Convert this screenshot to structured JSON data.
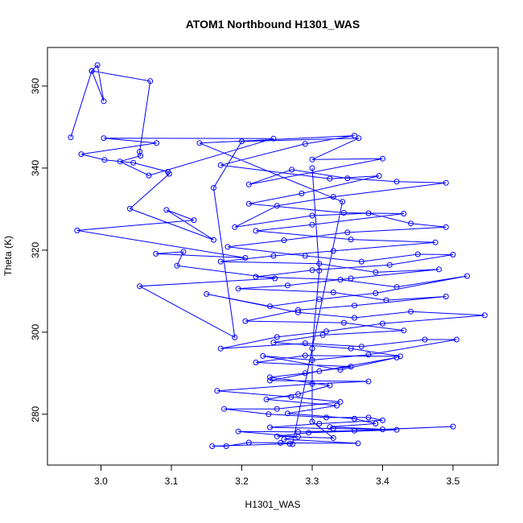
{
  "chart_data": {
    "type": "scatter",
    "title": "ATOM1 Northbound H1301_WAS",
    "xlabel": "H1301_WAS",
    "ylabel": "Theta (K)",
    "xlim": [
      2.924,
      3.564
    ],
    "ylim": [
      267.6,
      369.4
    ],
    "xticks": [
      3.0,
      3.1,
      3.2,
      3.3,
      3.4,
      3.5
    ],
    "xtick_labels": [
      "3.0",
      "3.1",
      "3.2",
      "3.3",
      "3.4",
      "3.5"
    ],
    "yticks": [
      280,
      300,
      320,
      340,
      360
    ],
    "ytick_labels": [
      "280",
      "300",
      "320",
      "340",
      "360"
    ],
    "grid": false,
    "legend": "none",
    "color": "#0000ff",
    "connected": true,
    "series": [
      {
        "points": [
          [
            2.957,
            347.5
          ],
          [
            2.987,
            363.7
          ],
          [
            2.995,
            365.1
          ],
          [
            3.004,
            356.3
          ],
          [
            2.987,
            363.7
          ],
          [
            3.07,
            361.2
          ],
          [
            3.055,
            344.0
          ],
          [
            3.056,
            343.0
          ],
          [
            3.027,
            341.6
          ],
          [
            3.068,
            338.2
          ],
          [
            3.245,
            347.2
          ],
          [
            3.004,
            347.3
          ],
          [
            3.079,
            346.1
          ],
          [
            2.972,
            343.4
          ],
          [
            3.005,
            342.0
          ],
          [
            3.046,
            341.3
          ],
          [
            3.095,
            339.1
          ],
          [
            3.097,
            338.6
          ],
          [
            3.041,
            330.1
          ],
          [
            3.16,
            322.5
          ],
          [
            3.093,
            329.8
          ],
          [
            3.132,
            327.3
          ],
          [
            2.966,
            324.8
          ],
          [
            3.205,
            318.1
          ],
          [
            3.078,
            319.1
          ],
          [
            3.117,
            319.6
          ],
          [
            3.108,
            316.2
          ],
          [
            3.247,
            313.1
          ],
          [
            3.055,
            311.2
          ],
          [
            3.19,
            298.7
          ],
          [
            3.16,
            335.2
          ],
          [
            3.2,
            346.5
          ],
          [
            3.366,
            347.3
          ],
          [
            3.3,
            342.1
          ],
          [
            3.4,
            342.3
          ],
          [
            3.21,
            336.0
          ],
          [
            3.271,
            339.6
          ],
          [
            3.35,
            337.5
          ],
          [
            3.42,
            336.7
          ],
          [
            3.49,
            336.4
          ],
          [
            3.33,
            333.0
          ],
          [
            3.25,
            330.8
          ],
          [
            3.19,
            325.6
          ],
          [
            3.3,
            328.4
          ],
          [
            3.38,
            329.0
          ],
          [
            3.44,
            326.5
          ],
          [
            3.49,
            325.6
          ],
          [
            3.35,
            324.3
          ],
          [
            3.26,
            322.4
          ],
          [
            3.18,
            320.8
          ],
          [
            3.29,
            318.6
          ],
          [
            3.37,
            317.2
          ],
          [
            3.45,
            319.0
          ],
          [
            3.5,
            318.9
          ],
          [
            3.41,
            316.4
          ],
          [
            3.3,
            315.1
          ],
          [
            3.22,
            313.5
          ],
          [
            3.34,
            312.8
          ],
          [
            3.42,
            311.0
          ],
          [
            3.52,
            313.7
          ],
          [
            3.39,
            309.5
          ],
          [
            3.31,
            308.0
          ],
          [
            3.24,
            306.3
          ],
          [
            3.15,
            309.3
          ],
          [
            3.28,
            304.8
          ],
          [
            3.36,
            303.5
          ],
          [
            3.44,
            305.0
          ],
          [
            3.545,
            304.1
          ],
          [
            3.4,
            302.1
          ],
          [
            3.32,
            300.2
          ],
          [
            3.25,
            298.8
          ],
          [
            3.17,
            296.0
          ],
          [
            3.29,
            297.3
          ],
          [
            3.37,
            296.5
          ],
          [
            3.46,
            298.2
          ],
          [
            3.505,
            298.2
          ],
          [
            3.38,
            294.5
          ],
          [
            3.3,
            293.2
          ],
          [
            3.23,
            294.2
          ],
          [
            3.34,
            290.8
          ],
          [
            3.42,
            293.8
          ],
          [
            3.31,
            290.5
          ],
          [
            3.24,
            288.2
          ],
          [
            3.38,
            288.0
          ],
          [
            3.3,
            287.4
          ],
          [
            3.165,
            285.7
          ],
          [
            3.27,
            284.2
          ],
          [
            3.34,
            283.0
          ],
          [
            3.25,
            281.3
          ],
          [
            3.175,
            281.3
          ],
          [
            3.238,
            280.0
          ],
          [
            3.32,
            279.2
          ],
          [
            3.38,
            279.2
          ],
          [
            3.4,
            278.5
          ],
          [
            3.31,
            277.7
          ],
          [
            3.24,
            276.8
          ],
          [
            3.33,
            276.5
          ],
          [
            3.4,
            276.3
          ],
          [
            3.5,
            277.0
          ],
          [
            3.36,
            276.0
          ],
          [
            3.28,
            275.7
          ],
          [
            3.195,
            275.8
          ],
          [
            3.28,
            274.5
          ],
          [
            3.26,
            273.9
          ],
          [
            3.365,
            272.9
          ],
          [
            3.255,
            273.0
          ],
          [
            3.21,
            273.1
          ],
          [
            3.178,
            272.2
          ],
          [
            3.158,
            272.2
          ],
          [
            3.268,
            272.8
          ],
          [
            3.272,
            272.7
          ],
          [
            3.343,
            331.8
          ],
          [
            3.14,
            346.1
          ],
          [
            3.36,
            347.9
          ],
          [
            3.29,
            345.9
          ],
          [
            3.17,
            340.7
          ],
          [
            3.325,
            337.4
          ],
          [
            3.395,
            338.1
          ],
          [
            3.285,
            333.8
          ],
          [
            3.21,
            331.3
          ],
          [
            3.345,
            329.1
          ],
          [
            3.43,
            328.9
          ],
          [
            3.3,
            326.2
          ],
          [
            3.22,
            324.7
          ],
          [
            3.355,
            322.6
          ],
          [
            3.475,
            321.9
          ],
          [
            3.33,
            319.8
          ],
          [
            3.245,
            318.6
          ],
          [
            3.17,
            317.2
          ],
          [
            3.31,
            316.7
          ],
          [
            3.39,
            314.6
          ],
          [
            3.48,
            315.3
          ],
          [
            3.355,
            313.1
          ],
          [
            3.265,
            311.4
          ],
          [
            3.195,
            310.6
          ],
          [
            3.33,
            309.7
          ],
          [
            3.405,
            307.8
          ],
          [
            3.49,
            308.7
          ],
          [
            3.36,
            306.5
          ],
          [
            3.28,
            305.4
          ],
          [
            3.205,
            302.7
          ],
          [
            3.345,
            302.3
          ],
          [
            3.43,
            300.4
          ],
          [
            3.315,
            299.3
          ],
          [
            3.245,
            297.5
          ],
          [
            3.355,
            296.0
          ],
          [
            3.425,
            294.1
          ],
          [
            3.29,
            294.3
          ],
          [
            3.22,
            292.6
          ],
          [
            3.355,
            291.6
          ],
          [
            3.29,
            290.0
          ],
          [
            3.24,
            289.0
          ],
          [
            3.325,
            287.0
          ],
          [
            3.28,
            284.9
          ],
          [
            3.235,
            283.6
          ],
          [
            3.335,
            282.1
          ],
          [
            3.265,
            280.2
          ],
          [
            3.36,
            278.9
          ],
          [
            3.39,
            277.7
          ],
          [
            3.325,
            276.9
          ],
          [
            3.42,
            276.2
          ],
          [
            3.295,
            275.5
          ],
          [
            3.25,
            274.6
          ],
          [
            3.33,
            274.2
          ],
          [
            3.3,
            278.2
          ],
          [
            3.3,
            296.0
          ],
          [
            3.31,
            315.0
          ],
          [
            3.3,
            340.0
          ]
        ]
      }
    ]
  }
}
